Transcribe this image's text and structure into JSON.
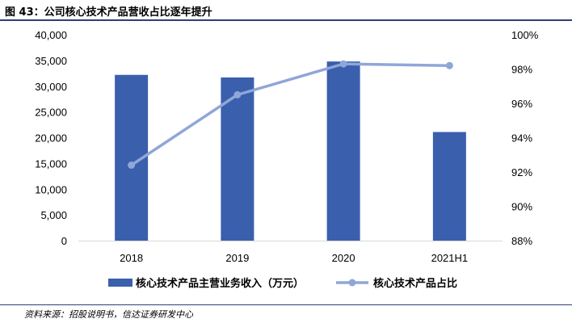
{
  "header": {
    "title": "图 43：公司核心技术产品营收占比逐年提升"
  },
  "footer": {
    "source": "资料来源：招股说明书，信达证券研发中心"
  },
  "chart_data": {
    "type": "bar",
    "categories": [
      "2018",
      "2019",
      "2020",
      "2021H1"
    ],
    "series": [
      {
        "name": "核心技术产品主营业务收入（万元）",
        "type": "bar",
        "axis": "left",
        "color": "#3a5fad",
        "values": [
          32200,
          31700,
          34800,
          21100
        ]
      },
      {
        "name": "核心技术产品占比",
        "type": "line",
        "axis": "right",
        "color": "#8fa6d8",
        "values": [
          92.4,
          96.5,
          98.3,
          98.2
        ]
      }
    ],
    "y_left": {
      "min": 0,
      "max": 40000,
      "ticks": [
        0,
        5000,
        10000,
        15000,
        20000,
        25000,
        30000,
        35000,
        40000
      ],
      "tick_labels": [
        "0",
        "5,000",
        "10,000",
        "15,000",
        "20,000",
        "25,000",
        "30,000",
        "35,000",
        "40,000"
      ]
    },
    "y_right": {
      "min": 88,
      "max": 100,
      "ticks": [
        88,
        90,
        92,
        94,
        96,
        98,
        100
      ],
      "tick_labels": [
        "88%",
        "90%",
        "92%",
        "94%",
        "96%",
        "98%",
        "100%"
      ]
    },
    "grid": false,
    "legend_position": "bottom"
  }
}
